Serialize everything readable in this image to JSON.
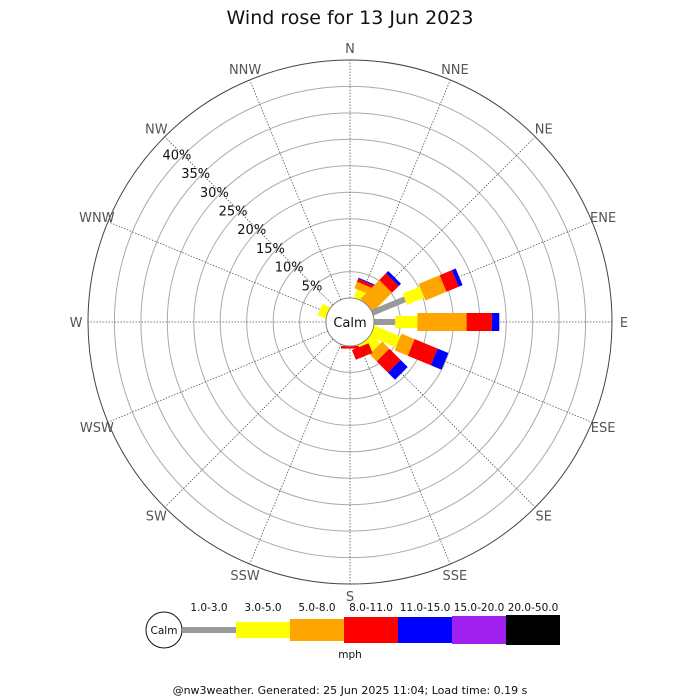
{
  "chart_data": {
    "type": "windrose",
    "title": "Wind rose for 13 Jun 2023",
    "directions": [
      "N",
      "NNE",
      "NE",
      "ENE",
      "E",
      "ESE",
      "SE",
      "SSE",
      "S",
      "SSW",
      "SW",
      "WSW",
      "W",
      "WNW",
      "NW",
      "NNW"
    ],
    "radial_ticks": [
      "5%",
      "10%",
      "15%",
      "20%",
      "25%",
      "30%",
      "35%",
      "40%"
    ],
    "radial_max_percent": 45,
    "calm_label": "Calm",
    "speed_bins": [
      "1.0-3.0",
      "3.0-5.0",
      "5.0-8.0",
      "8.0-11.0",
      "11.0-15.0",
      "15.0-20.0",
      "20.0-50.0"
    ],
    "bin_colors": [
      "#999999",
      "#ffff00",
      "#ffa500",
      "#ff0000",
      "#0000ff",
      "#a020f0",
      "#000000"
    ],
    "units": "mph",
    "sectors": [
      {
        "direction": "NNE",
        "cumulative_percent": [
          0,
          1.7,
          3.0,
          3.6,
          3.8,
          3.8,
          3.8
        ]
      },
      {
        "direction": "NE",
        "cumulative_percent": [
          0,
          0,
          5.0,
          6.8,
          7.4,
          7.4,
          7.4
        ]
      },
      {
        "direction": "ENE",
        "cumulative_percent": [
          6.7,
          10.2,
          14.5,
          17.0,
          17.8,
          17.8,
          17.8
        ]
      },
      {
        "direction": "E",
        "cumulative_percent": [
          4.0,
          8.2,
          17.5,
          22.3,
          23.7,
          23.7,
          23.7
        ]
      },
      {
        "direction": "ESE",
        "cumulative_percent": [
          0,
          5.3,
          8.0,
          12.7,
          14.9,
          14.9,
          14.9
        ]
      },
      {
        "direction": "SE",
        "cumulative_percent": [
          0,
          2.4,
          4.3,
          7.3,
          9.2,
          9.2,
          9.2
        ]
      },
      {
        "direction": "SSE",
        "cumulative_percent": [
          0,
          0.5,
          0.5,
          2.5,
          2.5,
          2.5,
          2.5
        ]
      },
      {
        "direction": "S",
        "cumulative_percent": [
          0,
          0,
          0,
          0.5,
          0.5,
          0.5,
          0.5
        ]
      },
      {
        "direction": "WNW",
        "cumulative_percent": [
          0,
          1.6,
          1.6,
          1.6,
          1.6,
          1.6,
          1.6
        ]
      }
    ],
    "footer": "@nw3weather. Generated: 25 Jun 2025 11:04; Load time: 0.19 s"
  }
}
